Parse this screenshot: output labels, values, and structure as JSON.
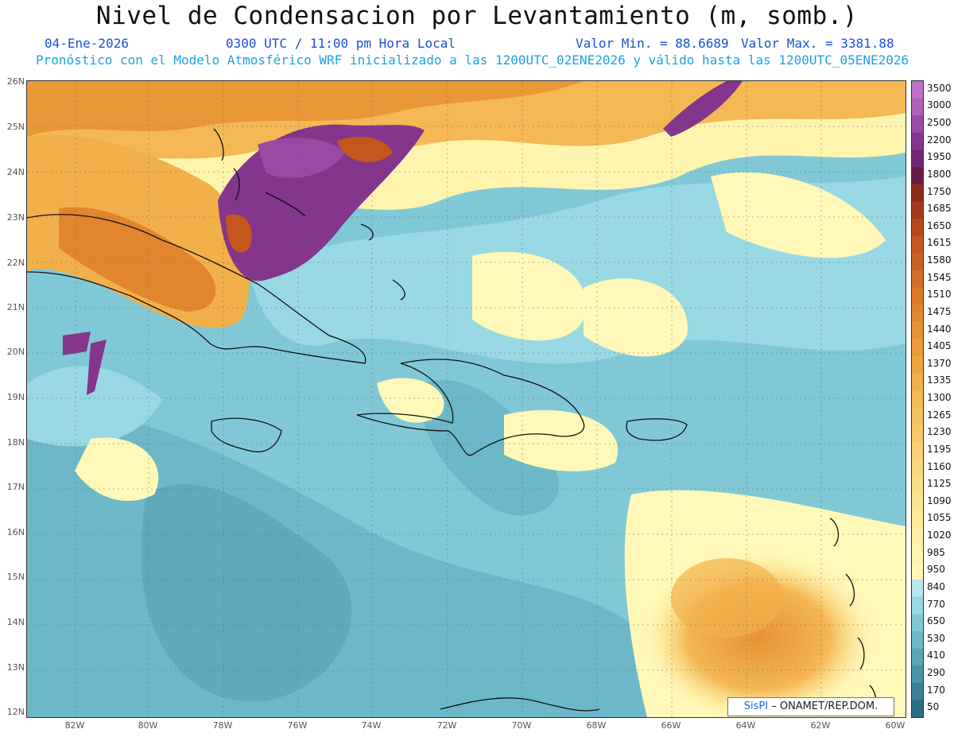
{
  "header": {
    "title": "Nivel de Condensacion por Levantamiento (m, somb.)",
    "date": "04-Ene-2026",
    "time": "0300 UTC / 11:00 pm Hora Local",
    "min_label": "Valor Min. = 88.6689",
    "max_label": "Valor Max. = 3381.88",
    "forecast_line": "Pronóstico con el Modelo Atmosférico WRF inicializado a las 1200UTC_02ENE2026 y válido hasta las  1200UTC_05ENE2026"
  },
  "map": {
    "lat_ticks": [
      "26N",
      "25N",
      "24N",
      "23N",
      "22N",
      "21N",
      "20N",
      "19N",
      "18N",
      "17N",
      "16N",
      "15N",
      "14N",
      "13N",
      "12N"
    ],
    "lon_ticks": [
      "82W",
      "80W",
      "78W",
      "76W",
      "74W",
      "72W",
      "70W",
      "68W",
      "66W",
      "64W",
      "62W",
      "60W"
    ]
  },
  "colorbar": {
    "labels": [
      "3500",
      "3000",
      "2500",
      "2200",
      "1950",
      "1800",
      "1750",
      "1685",
      "1650",
      "1615",
      "1580",
      "1545",
      "1510",
      "1475",
      "1440",
      "1405",
      "1370",
      "1335",
      "1300",
      "1265",
      "1230",
      "1195",
      "1160",
      "1125",
      "1090",
      "1055",
      "1020",
      "985",
      "950",
      "840",
      "770",
      "650",
      "530",
      "410",
      "290",
      "170",
      "50"
    ],
    "colors": [
      "#c070c8",
      "#b160b8",
      "#9a4aa2",
      "#84358c",
      "#6e2477",
      "#6a1a48",
      "#8a2a1a",
      "#a43a1a",
      "#b8491c",
      "#c4561e",
      "#cc6222",
      "#d46e26",
      "#dc7a2a",
      "#e2862e",
      "#e69232",
      "#ea9c38",
      "#eea640",
      "#f2b04a",
      "#f4b854",
      "#f6c05e",
      "#f8c868",
      "#f9d072",
      "#fad87c",
      "#fbdf86",
      "#fce590",
      "#fdeb9a",
      "#fef0a4",
      "#fff4ae",
      "#fff8b8",
      "#b8e6ec",
      "#98d8e2",
      "#80c8d6",
      "#6cb8c8",
      "#5aa6b8",
      "#4894a8",
      "#3a8098",
      "#2c6c86"
    ]
  },
  "credit": {
    "logo": "SisPI",
    "text": "– ONAMET/REP.DOM."
  }
}
